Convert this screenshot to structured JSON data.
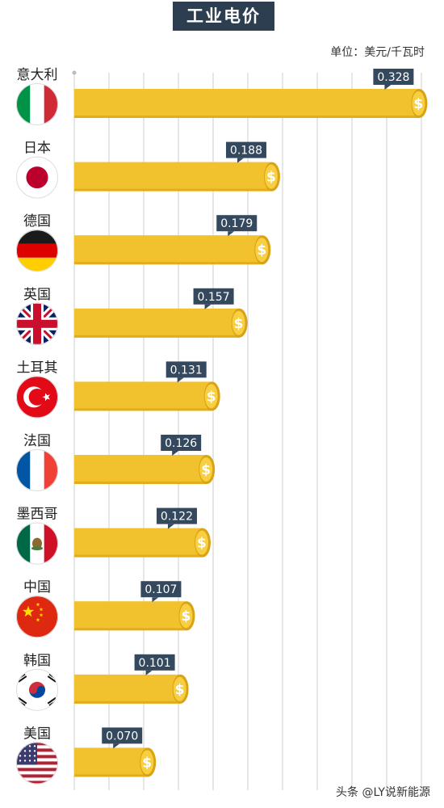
{
  "title": "工业电价",
  "unit": "单位：美元/千瓦时",
  "watermark": "头条 @LY说新能源",
  "colors": {
    "bar": "#f2c12e",
    "bar_edge": "#e3ad1a",
    "coin": "#f7cf40",
    "coin_edge": "#d9a316",
    "label_bg": "#34495e",
    "grid": "#cfcfcf"
  },
  "chart_data": {
    "type": "bar",
    "orientation": "horizontal",
    "title": "工业电价",
    "unit": "单位：美元/千瓦时",
    "categories": [
      "意大利",
      "日本",
      "德国",
      "英国",
      "土耳其",
      "法国",
      "墨西哥",
      "中国",
      "韩国",
      "美国"
    ],
    "values": [
      0.328,
      0.188,
      0.179,
      0.157,
      0.131,
      0.126,
      0.122,
      0.107,
      0.101,
      0.07
    ],
    "value_labels": [
      "0.328",
      "0.188",
      "0.179",
      "0.157",
      "0.131",
      "0.126",
      "0.122",
      "0.107",
      "0.101",
      "0.070"
    ],
    "flags": [
      "italy-flag-icon",
      "japan-flag-icon",
      "germany-flag-icon",
      "uk-flag-icon",
      "turkey-flag-icon",
      "france-flag-icon",
      "mexico-flag-icon",
      "china-flag-icon",
      "korea-flag-icon",
      "usa-flag-icon"
    ],
    "coin_symbol": "$",
    "grid": true,
    "xlim": [
      0,
      0.33
    ]
  }
}
